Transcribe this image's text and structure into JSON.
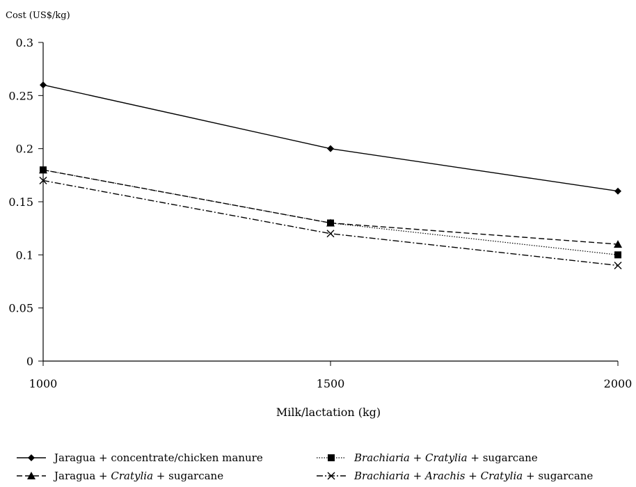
{
  "chart_data": {
    "type": "line",
    "ylabel": "Cost (US$/kg)",
    "xlabel": "Milk/lactation (kg)",
    "x": [
      1000,
      1500,
      2000
    ],
    "x_tick_labels": [
      "1000",
      "1500",
      "2000"
    ],
    "ylim": [
      0,
      0.3
    ],
    "y_ticks": [
      0,
      0.05,
      0.1,
      0.15,
      0.2,
      0.25,
      0.3
    ],
    "y_tick_labels": [
      "0",
      "0.05",
      "0.1",
      "0.15",
      "0.2",
      "0.25",
      "0.3"
    ],
    "grid": false,
    "legend_position": "bottom",
    "series": [
      {
        "name": "Jaragua + concentrate/chicken manure",
        "name_parts": [
          {
            "text": "Jaragua + concentrate/chicken manure",
            "italic": false
          }
        ],
        "values": [
          0.26,
          0.2,
          0.16
        ],
        "marker": "diamond",
        "line_style": "solid",
        "color": "#000000"
      },
      {
        "name": "Jaragua + Cratylia + sugarcane",
        "name_parts": [
          {
            "text": "Jaragua + ",
            "italic": false
          },
          {
            "text": "Cratylia",
            "italic": true
          },
          {
            "text": " + sugarcane",
            "italic": false
          }
        ],
        "values": [
          0.18,
          0.13,
          0.11
        ],
        "marker": "triangle",
        "line_style": "dashed",
        "color": "#000000"
      },
      {
        "name": "Brachiaria + Cratylia + sugarcane",
        "name_parts": [
          {
            "text": "Brachiaria",
            "italic": true
          },
          {
            "text": " + ",
            "italic": false
          },
          {
            "text": "Cratylia",
            "italic": true
          },
          {
            "text": " + sugarcane",
            "italic": false
          }
        ],
        "values": [
          0.18,
          0.13,
          0.1
        ],
        "marker": "square",
        "line_style": "dotted",
        "color": "#000000"
      },
      {
        "name": "Brachiaria + Arachis + Cratylia + sugarcane",
        "name_parts": [
          {
            "text": "Brachiaria",
            "italic": true
          },
          {
            "text": " + ",
            "italic": false
          },
          {
            "text": "Arachis",
            "italic": true
          },
          {
            "text": " + ",
            "italic": false
          },
          {
            "text": "Cratylia",
            "italic": true
          },
          {
            "text": " + sugarcane",
            "italic": false
          }
        ],
        "values": [
          0.17,
          0.12,
          0.09
        ],
        "marker": "x",
        "line_style": "dashdot",
        "color": "#000000"
      }
    ]
  }
}
